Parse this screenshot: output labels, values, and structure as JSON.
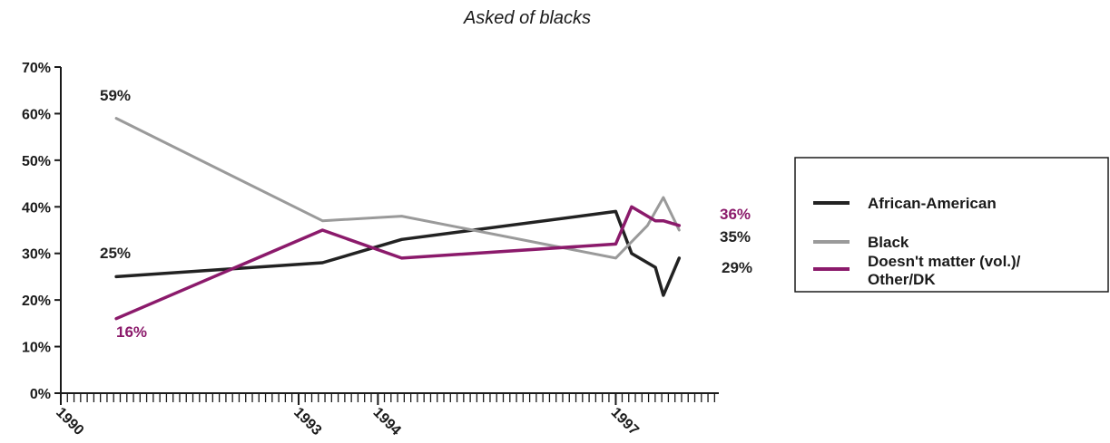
{
  "chart_data": {
    "type": "line",
    "title": "Asked of blacks",
    "xlabel": "",
    "ylabel": "",
    "ylim": [
      0,
      70
    ],
    "y_ticks": [
      "0%",
      "10%",
      "20%",
      "30%",
      "40%",
      "50%",
      "60%",
      "70%"
    ],
    "y_tick_values": [
      0,
      10,
      20,
      30,
      40,
      50,
      60,
      70
    ],
    "xlim": [
      1990.0,
      1998.3
    ],
    "x_tick_labels": [
      "1990",
      "1993",
      "1994",
      "1997"
    ],
    "x_tick_values": [
      1990.0,
      1993.0,
      1994.0,
      1997.0
    ],
    "x_minor_tick_start": 1990.0,
    "x_minor_tick_step": 0.0833,
    "grid": false,
    "legend_position": "right",
    "series": [
      {
        "name": "African-American",
        "color": "#222222",
        "points": [
          {
            "x": 1990.7,
            "y": 25
          },
          {
            "x": 1993.3,
            "y": 28
          },
          {
            "x": 1994.3,
            "y": 33
          },
          {
            "x": 1997.0,
            "y": 39
          },
          {
            "x": 1997.2,
            "y": 30
          },
          {
            "x": 1997.5,
            "y": 27
          },
          {
            "x": 1997.6,
            "y": 21
          },
          {
            "x": 1997.8,
            "y": 29
          }
        ]
      },
      {
        "name": "Black",
        "color": "#9a9a9a",
        "points": [
          {
            "x": 1990.7,
            "y": 59
          },
          {
            "x": 1993.3,
            "y": 37
          },
          {
            "x": 1994.3,
            "y": 38
          },
          {
            "x": 1997.0,
            "y": 29
          },
          {
            "x": 1997.4,
            "y": 36
          },
          {
            "x": 1997.6,
            "y": 42
          },
          {
            "x": 1997.8,
            "y": 35
          }
        ]
      },
      {
        "name": "Doesn't matter (vol.)/ Other/DK",
        "legend_lines": [
          "Doesn't matter (vol.)/",
          "Other/DK"
        ],
        "color": "#8b1a6b",
        "points": [
          {
            "x": 1990.7,
            "y": 16
          },
          {
            "x": 1993.3,
            "y": 35
          },
          {
            "x": 1994.3,
            "y": 29
          },
          {
            "x": 1997.0,
            "y": 32
          },
          {
            "x": 1997.2,
            "y": 40
          },
          {
            "x": 1997.5,
            "y": 37
          },
          {
            "x": 1997.6,
            "y": 37
          },
          {
            "x": 1997.8,
            "y": 36
          }
        ]
      }
    ],
    "annotations": [
      {
        "text": "59%",
        "color": "#222222"
      },
      {
        "text": "25%",
        "color": "#222222"
      },
      {
        "text": "16%",
        "color": "#8b1a6b"
      },
      {
        "text": "36%",
        "color": "#8b1a6b"
      },
      {
        "text": "35%",
        "color": "#222222"
      },
      {
        "text": "29%",
        "color": "#222222"
      }
    ]
  }
}
